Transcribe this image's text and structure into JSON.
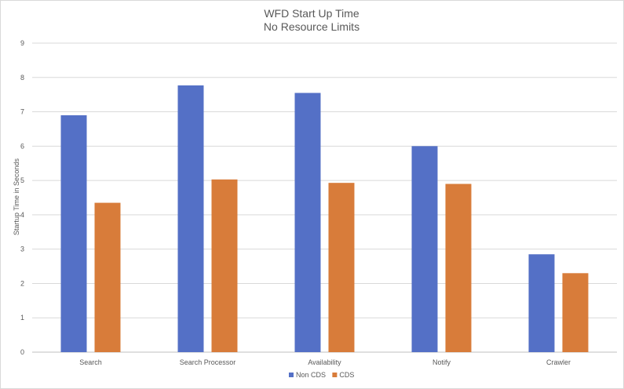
{
  "chart_data": {
    "type": "bar",
    "title": "WFD Start Up Time",
    "subtitle": "No Resource Limits",
    "xlabel": "",
    "ylabel": "Startup Time in Seconds",
    "ylim": [
      0,
      9
    ],
    "yticks": [
      0,
      1,
      2,
      3,
      4,
      5,
      6,
      7,
      8,
      9
    ],
    "grid": true,
    "legend_position": "bottom",
    "categories": [
      "Search",
      "Search Processor",
      "Availability",
      "Notify",
      "Crawler"
    ],
    "series": [
      {
        "name": "Non CDS",
        "color": "#5470c6",
        "values": [
          6.9,
          7.77,
          7.55,
          6.0,
          2.85
        ]
      },
      {
        "name": "CDS",
        "color": "#d87c3a",
        "values": [
          4.35,
          5.03,
          4.93,
          4.9,
          2.3
        ]
      }
    ]
  }
}
